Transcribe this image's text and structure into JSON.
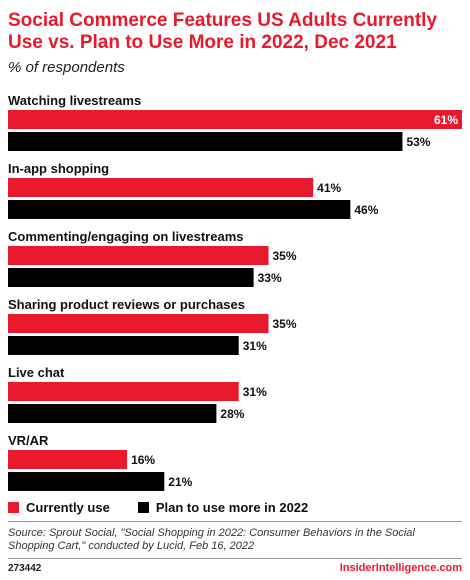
{
  "header": {
    "title": "Social Commerce Features US Adults Currently Use vs. Plan to Use More in 2022, Dec 2021",
    "subtitle": "% of respondents"
  },
  "chart_data": {
    "type": "bar",
    "orientation": "horizontal",
    "categories": [
      "Watching livestreams",
      "In-app shopping",
      "Commenting/engaging on livestreams",
      "Sharing product reviews or purchases",
      "Live chat",
      "VR/AR"
    ],
    "series": [
      {
        "name": "Currently use",
        "color": "#e8192c",
        "values": [
          61,
          41,
          35,
          35,
          31,
          16
        ],
        "labels": [
          "61%",
          "41%",
          "35%",
          "35%",
          "31%",
          "16%"
        ]
      },
      {
        "name": "Plan to use more in 2022",
        "color": "#000000",
        "values": [
          53,
          46,
          33,
          31,
          28,
          21
        ],
        "labels": [
          "53%",
          "46%",
          "33%",
          "31%",
          "28%",
          "21%"
        ]
      }
    ],
    "xlim": [
      0,
      61
    ],
    "grid": false,
    "legend_position": "bottom-left"
  },
  "footer": {
    "source": "Source: Sprout Social, \"Social Shopping in 2022: Consumer Behaviors in the Social Shopping Cart,\" conducted by Lucid, Feb 16, 2022",
    "chart_id": "273442",
    "brand": "InsiderIntelligence.com"
  }
}
